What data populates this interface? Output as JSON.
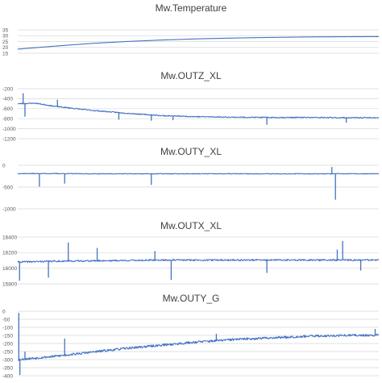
{
  "chart_data": [
    {
      "type": "line",
      "title": "Mw.Temperature",
      "xlabel": "",
      "ylabel": "",
      "ylim": [
        15,
        35
      ],
      "yticks": [
        "15",
        "20",
        "25",
        "30",
        "35"
      ],
      "grid": true,
      "series_color": "#4472c4",
      "series": [
        {
          "x": [
            0,
            0.1,
            0.2,
            0.3,
            0.4,
            0.5,
            0.6,
            0.7,
            0.8,
            0.9,
            1.0
          ],
          "values": [
            18.5,
            21.0,
            23.3,
            25.0,
            26.3,
            27.3,
            28.0,
            28.5,
            28.9,
            29.1,
            29.2
          ]
        }
      ]
    },
    {
      "type": "line",
      "title": "Mw.OUTZ_XL",
      "xlabel": "",
      "ylabel": "",
      "ylim": [
        -1200,
        -200
      ],
      "yticks": [
        "-200",
        "-400",
        "-600",
        "-800",
        "-1000",
        "-1200"
      ],
      "grid": true,
      "series_color": "#4472c4",
      "series": [
        {
          "x": [
            0,
            0.05,
            0.1,
            0.2,
            0.3,
            0.4,
            0.5,
            0.6,
            0.7,
            0.8,
            0.9,
            1.0
          ],
          "values": [
            -500,
            -490,
            -550,
            -630,
            -690,
            -740,
            -760,
            -770,
            -775,
            -775,
            -780,
            -780
          ]
        }
      ],
      "spikes": [
        {
          "x": 0.015,
          "value": -290
        },
        {
          "x": 0.02,
          "value": -760
        },
        {
          "x": 0.11,
          "value": -420
        },
        {
          "x": 0.28,
          "value": -820
        },
        {
          "x": 0.37,
          "value": -840
        },
        {
          "x": 0.43,
          "value": -830
        },
        {
          "x": 0.69,
          "value": -920
        },
        {
          "x": 0.91,
          "value": -880
        }
      ]
    },
    {
      "type": "line",
      "title": "Mw.OUTY_XL",
      "xlabel": "",
      "ylabel": "",
      "ylim": [
        -1000,
        0
      ],
      "yticks": [
        "0",
        "-500",
        "-1000"
      ],
      "grid": true,
      "series_color": "#4472c4",
      "series": [
        {
          "x": [
            0,
            0.1,
            0.2,
            0.3,
            0.4,
            0.5,
            0.6,
            0.7,
            0.8,
            0.9,
            1.0
          ],
          "values": [
            -190,
            -190,
            -195,
            -195,
            -195,
            -195,
            -195,
            -195,
            -195,
            -195,
            -195
          ]
        }
      ],
      "spikes": [
        {
          "x": 0.06,
          "value": -490
        },
        {
          "x": 0.13,
          "value": -420
        },
        {
          "x": 0.37,
          "value": -450
        },
        {
          "x": 0.87,
          "value": -40
        },
        {
          "x": 0.88,
          "value": -790
        }
      ]
    },
    {
      "type": "line",
      "title": "Mw.OUTX_XL",
      "xlabel": "",
      "ylabel": "",
      "ylim": [
        15800,
        16400
      ],
      "yticks": [
        "16400",
        "16200",
        "16000",
        "15800"
      ],
      "grid": true,
      "series_color": "#4472c4",
      "series": [
        {
          "x": [
            0,
            0.1,
            0.2,
            0.3,
            0.4,
            0.5,
            0.6,
            0.7,
            0.8,
            0.9,
            1.0
          ],
          "values": [
            16080,
            16090,
            16095,
            16100,
            16105,
            16105,
            16105,
            16105,
            16105,
            16105,
            16105
          ]
        }
      ],
      "spikes": [
        {
          "x": 0.005,
          "value": 15840
        },
        {
          "x": 0.085,
          "value": 15880
        },
        {
          "x": 0.14,
          "value": 16330
        },
        {
          "x": 0.22,
          "value": 16260
        },
        {
          "x": 0.38,
          "value": 16220
        },
        {
          "x": 0.425,
          "value": 15850
        },
        {
          "x": 0.69,
          "value": 15940
        },
        {
          "x": 0.885,
          "value": 16240
        },
        {
          "x": 0.9,
          "value": 16350
        },
        {
          "x": 0.95,
          "value": 15970
        }
      ]
    },
    {
      "type": "line",
      "title": "Mw.OUTY_G",
      "xlabel": "",
      "ylabel": "",
      "ylim": [
        -400,
        0
      ],
      "yticks": [
        "0",
        "-50",
        "-100",
        "-150",
        "-200",
        "-250",
        "-300",
        "-350",
        "-400"
      ],
      "grid": true,
      "series_color": "#4472c4",
      "series": [
        {
          "x": [
            0,
            0.1,
            0.2,
            0.3,
            0.4,
            0.5,
            0.6,
            0.7,
            0.8,
            0.9,
            1.0
          ],
          "values": [
            -300,
            -280,
            -255,
            -230,
            -210,
            -190,
            -175,
            -165,
            -155,
            -150,
            -148
          ]
        }
      ],
      "spikes": [
        {
          "x": 0.003,
          "value": -10
        },
        {
          "x": 0.006,
          "value": -395
        },
        {
          "x": 0.02,
          "value": -250
        },
        {
          "x": 0.13,
          "value": -170
        },
        {
          "x": 0.55,
          "value": -140
        },
        {
          "x": 0.99,
          "value": -110
        }
      ]
    }
  ]
}
